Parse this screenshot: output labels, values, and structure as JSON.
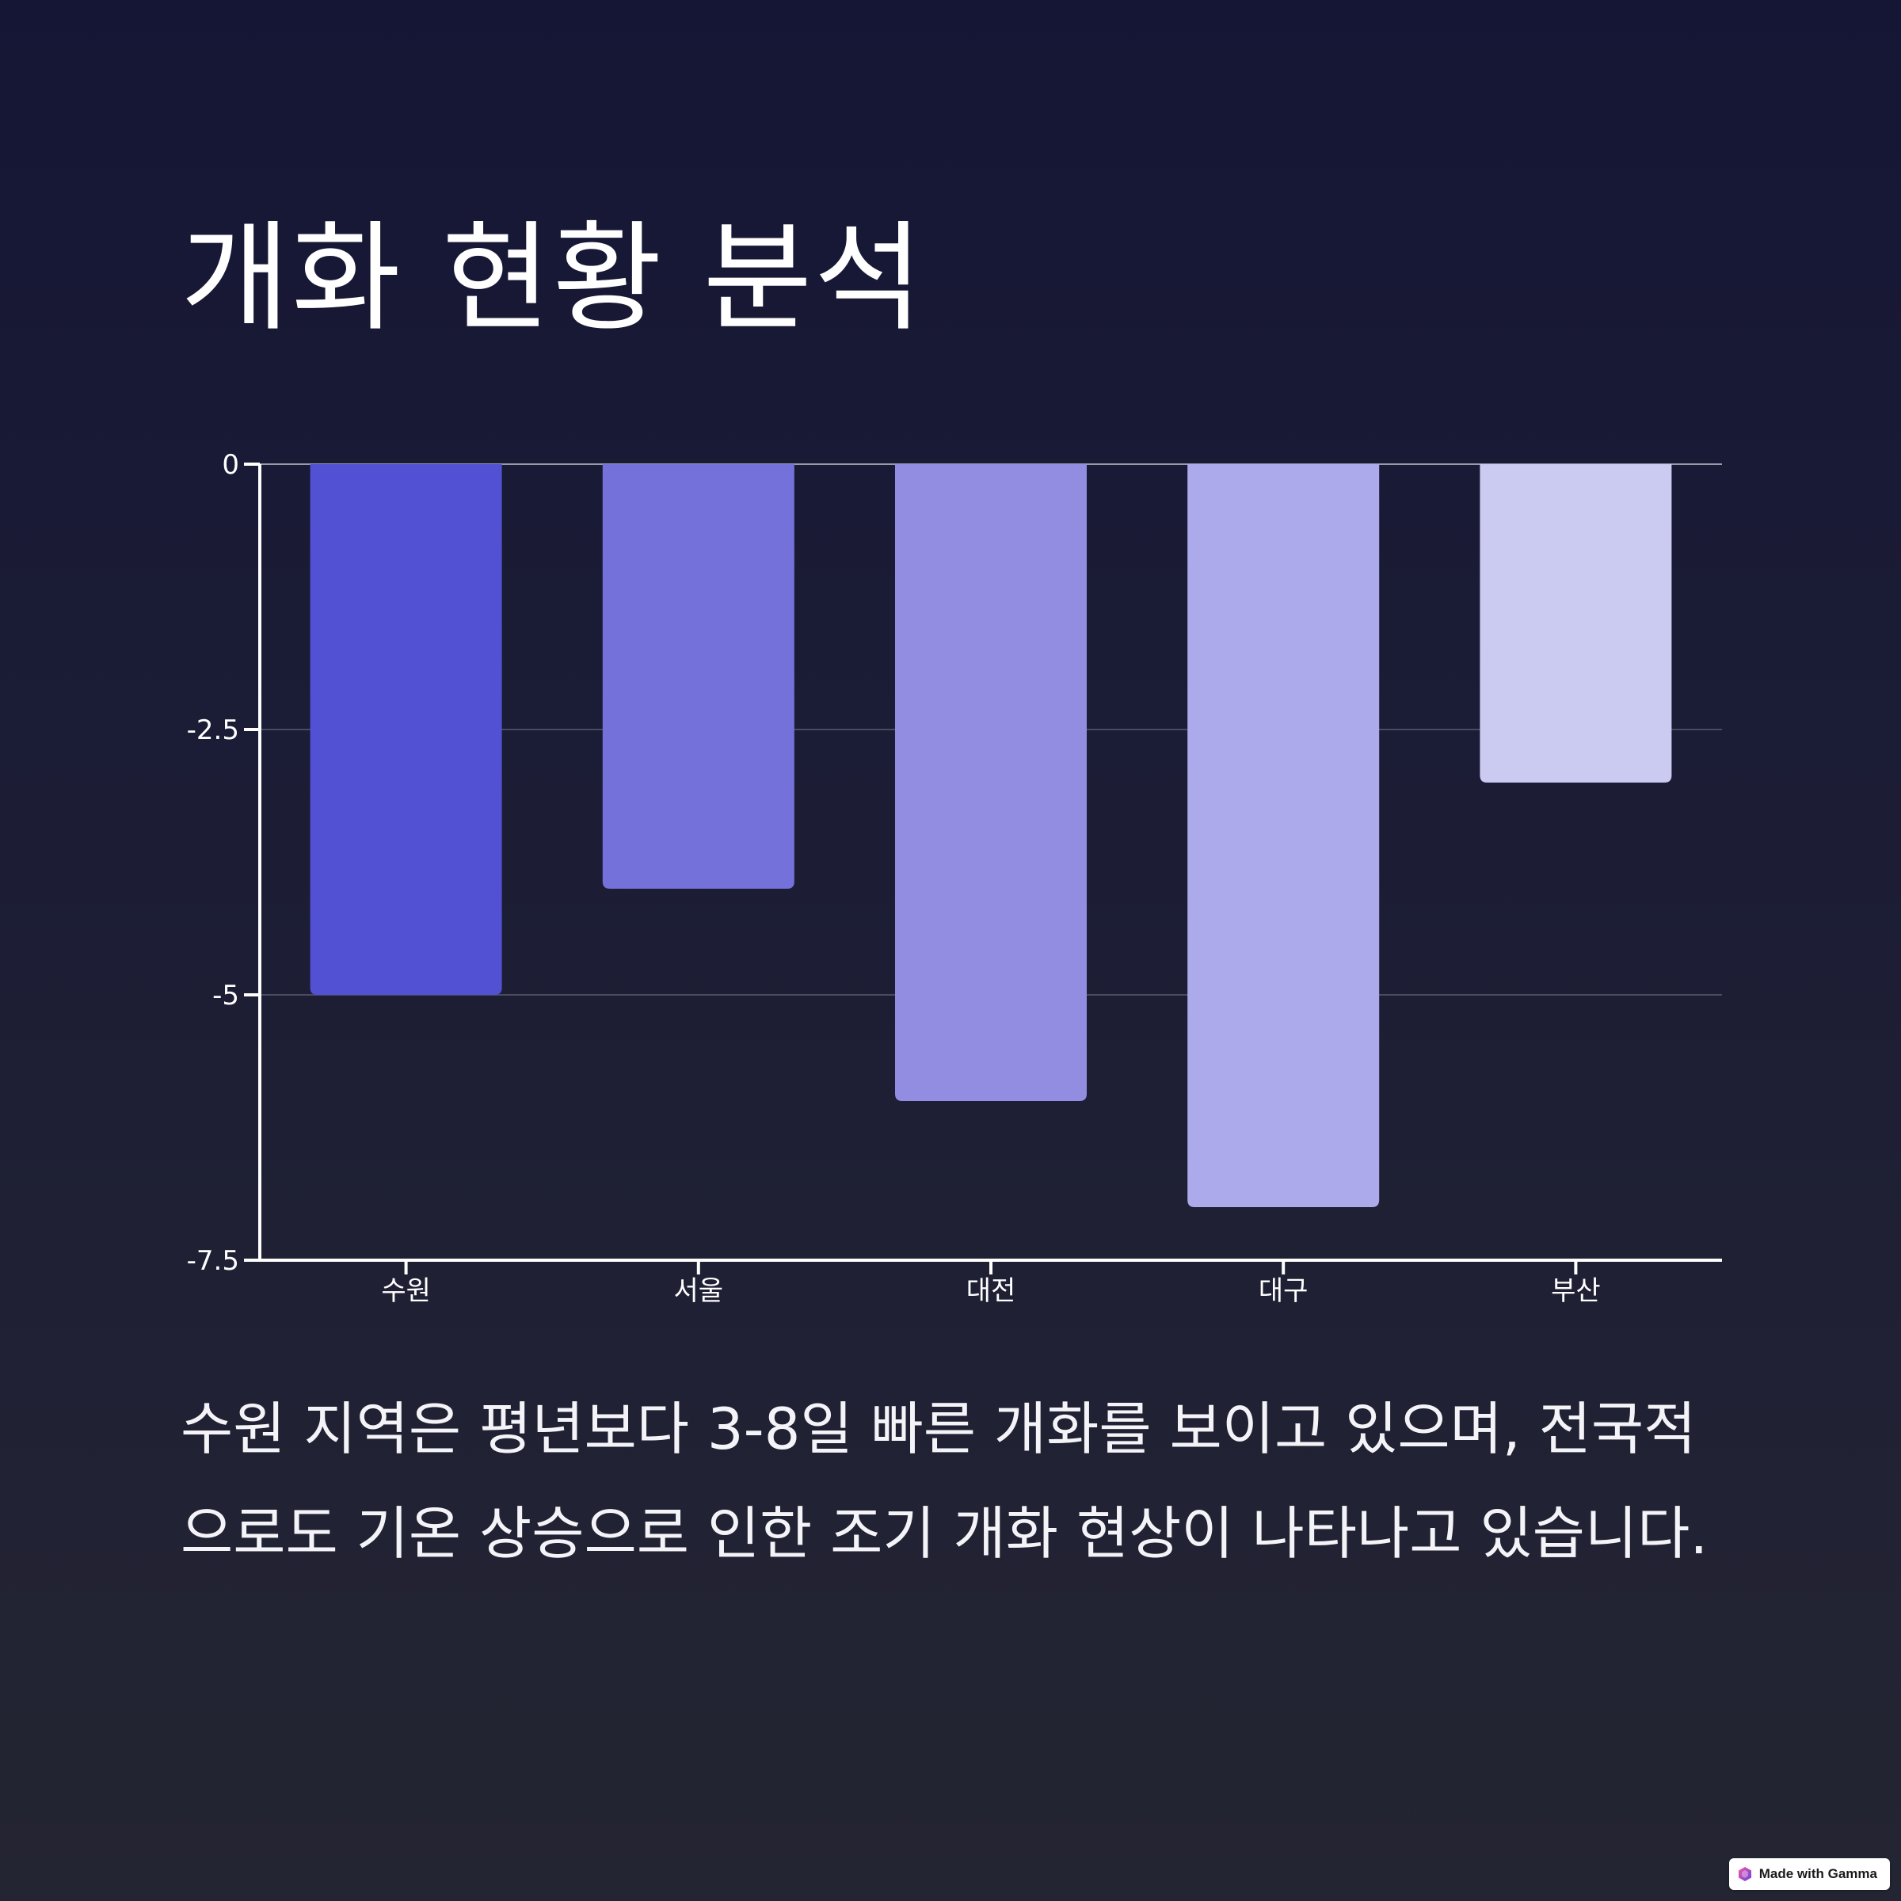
{
  "page": {
    "title": "개화 현황 분석",
    "body": "수원 지역은 평년보다 3-8일 빠른 개화를 보이고 있으며, 전국적으로도 기온 상승으로 인한 조기 개화 현상이 나타나고 있습니다."
  },
  "badge": {
    "text": "Made with Gamma",
    "icon": "gamma-logo-icon"
  },
  "colors": {
    "background_top": "#151635",
    "background_bottom": "#242532",
    "text": "#ffffff",
    "bars": [
      "#5250d3",
      "#7571db",
      "#928de0",
      "#adaaeb",
      "#cbcaf1"
    ]
  },
  "chart_data": {
    "type": "bar",
    "categories": [
      "수원",
      "서울",
      "대전",
      "대구",
      "부산"
    ],
    "values": [
      -5,
      -4,
      -6,
      -7,
      -3
    ],
    "title": "",
    "xlabel": "",
    "ylabel": "",
    "ylim": [
      -7.5,
      0
    ],
    "yticks": [
      0,
      -2.5,
      -5,
      -7.5
    ],
    "ytick_labels": [
      "0",
      "-2.5",
      "-5",
      "-7.5"
    ],
    "grid": true,
    "legend": "none"
  }
}
